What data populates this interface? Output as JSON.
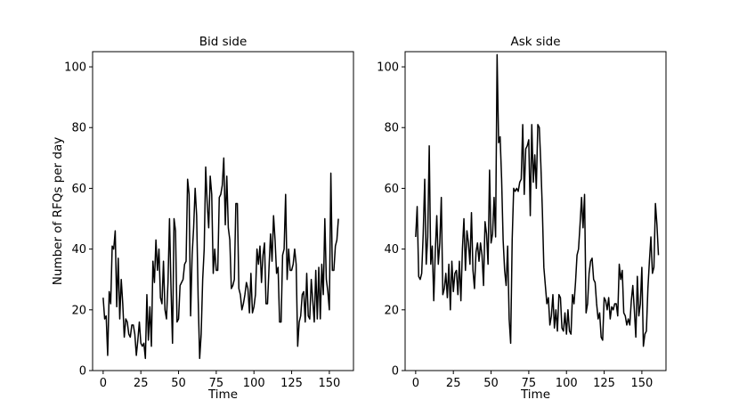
{
  "chart_data": [
    {
      "type": "line",
      "title": "Bid side",
      "xlabel": "Time",
      "ylabel": "Number of RFQs per day",
      "xlim": [
        -7,
        166
      ],
      "ylim": [
        0,
        105
      ],
      "xticks": [
        0,
        25,
        50,
        75,
        100,
        125,
        150
      ],
      "yticks": [
        0,
        20,
        40,
        60,
        80,
        100
      ],
      "grid": false,
      "series": [
        {
          "color": "#000000",
          "values": [
            24,
            17,
            18,
            5,
            26,
            22,
            41,
            40,
            46,
            21,
            37,
            17,
            30,
            22,
            11,
            17,
            16,
            12,
            11,
            15,
            15,
            12,
            5,
            10,
            16,
            9,
            8,
            9,
            4,
            25,
            10,
            21,
            8,
            36,
            29,
            43,
            33,
            40,
            24,
            22,
            36,
            20,
            17,
            29,
            50,
            27,
            9,
            50,
            46,
            16,
            17,
            28,
            29,
            30,
            35,
            36,
            63,
            58,
            18,
            38,
            47,
            60,
            51,
            24,
            4,
            12,
            30,
            40,
            67,
            55,
            47,
            64,
            58,
            32,
            40,
            33,
            33,
            57,
            58,
            61,
            70,
            48,
            64,
            47,
            43,
            27,
            28,
            30,
            55,
            55,
            27,
            25,
            20,
            22,
            25,
            29,
            27,
            19,
            32,
            19,
            21,
            25,
            40,
            35,
            41,
            29,
            38,
            42,
            22,
            22,
            34,
            45,
            36,
            51,
            43,
            32,
            34,
            16,
            16,
            38,
            40,
            58,
            30,
            40,
            33,
            33,
            35,
            40,
            35,
            8,
            16,
            18,
            25,
            26,
            16,
            32,
            18,
            17,
            30,
            23,
            16,
            33,
            17,
            34,
            17,
            35,
            25,
            50,
            30,
            26,
            20,
            65,
            33,
            33,
            41,
            43,
            50
          ]
        }
      ]
    },
    {
      "type": "line",
      "title": "Ask side",
      "xlabel": "Time",
      "xlim": [
        -7,
        166
      ],
      "ylim": [
        0,
        105
      ],
      "xticks": [
        0,
        25,
        50,
        75,
        100,
        125,
        150
      ],
      "yticks": [
        0,
        20,
        40,
        60,
        80,
        100
      ],
      "grid": false,
      "series": [
        {
          "color": "#000000",
          "values": [
            44,
            54,
            31,
            30,
            32,
            45,
            63,
            35,
            44,
            74,
            35,
            41,
            23,
            39,
            51,
            35,
            42,
            57,
            25,
            27,
            32,
            24,
            35,
            20,
            36,
            26,
            32,
            33,
            25,
            36,
            23,
            40,
            50,
            33,
            46,
            42,
            35,
            52,
            33,
            27,
            39,
            42,
            36,
            42,
            38,
            28,
            49,
            45,
            35,
            66,
            42,
            45,
            57,
            44,
            104,
            75,
            77,
            63,
            43,
            33,
            28,
            41,
            17,
            9,
            43,
            60,
            59,
            60,
            59,
            62,
            63,
            81,
            58,
            73,
            74,
            76,
            51,
            81,
            62,
            71,
            60,
            81,
            80,
            68,
            53,
            34,
            28,
            22,
            24,
            15,
            18,
            25,
            14,
            20,
            13,
            25,
            24,
            14,
            13,
            19,
            12,
            20,
            13,
            12,
            25,
            22,
            29,
            38,
            40,
            48,
            57,
            47,
            58,
            19,
            22,
            32,
            36,
            37,
            30,
            29,
            22,
            17,
            19,
            11,
            10,
            24,
            23,
            20,
            24,
            17,
            21,
            20,
            22,
            22,
            18,
            35,
            30,
            33,
            19,
            18,
            15,
            17,
            15,
            23,
            28,
            20,
            11,
            31,
            18,
            22,
            34,
            8,
            12,
            13,
            27,
            36,
            44,
            32,
            34,
            55,
            48,
            38
          ]
        }
      ]
    }
  ]
}
